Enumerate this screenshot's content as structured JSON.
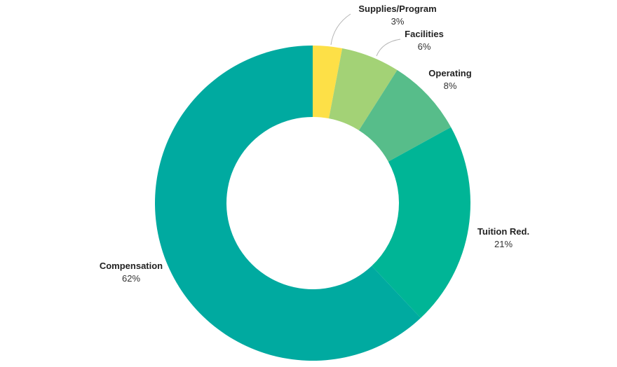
{
  "chart_data": {
    "type": "pie",
    "donut": true,
    "categories": [
      "Supplies/Program",
      "Facilities",
      "Operating",
      "Tuition Red.",
      "Compensation"
    ],
    "values": [
      3,
      6,
      8,
      21,
      62
    ],
    "labels": [
      "3%",
      "6%",
      "8%",
      "21%",
      "62%"
    ],
    "colors": [
      "#fde047",
      "#a3d276",
      "#57bd8a",
      "#00b596",
      "#00aaa0"
    ],
    "start_angle": "top",
    "direction": "clockwise",
    "legend": "none"
  }
}
